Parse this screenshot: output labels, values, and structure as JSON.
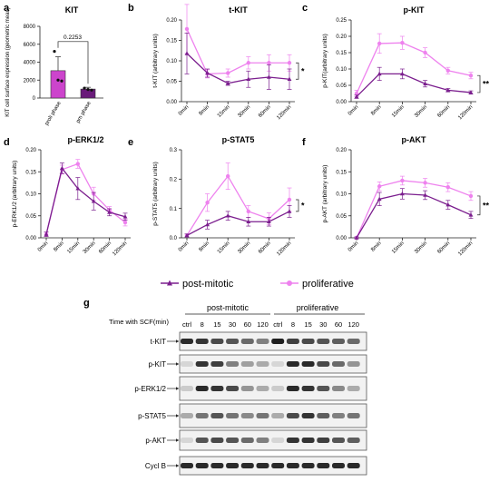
{
  "colors": {
    "post_mitotic": "#7b1e8e",
    "proliferative": "#ee82ee",
    "bar_prolif": "#cc44cc",
    "bar_pm": "#6a1b7a"
  },
  "panel_a": {
    "letter": "a",
    "chart_data": {
      "type": "bar",
      "title": "KIT",
      "categories": [
        "proli phase",
        "pm phase"
      ],
      "values": [
        3050,
        1000
      ],
      "errors": [
        1550,
        200
      ],
      "points": [
        [
          5200,
          2000,
          1900
        ],
        [
          1100,
          950,
          880
        ]
      ],
      "ylabel": "KIT cell surface expression (geometric mean)",
      "ylim": [
        0,
        8000
      ],
      "yticks": [
        "0",
        "2000",
        "4000",
        "6000",
        "8000"
      ],
      "p_value": "0.2253"
    }
  },
  "line_panels": [
    {
      "letter": "b",
      "chart_data": {
        "type": "line",
        "title": "t-KIT",
        "ylabel": "t-KIT (arbitrary units)",
        "ylim": [
          0,
          0.2
        ],
        "yticks": [
          "0.00",
          "0.05",
          "0.10",
          "0.15",
          "0.20"
        ],
        "categories": [
          "0min",
          "8min",
          "15min",
          "30min",
          "60min",
          "120min"
        ],
        "series": [
          {
            "values": [
              0.118,
              0.07,
              0.045,
              0.055,
              0.06,
              0.055
            ],
            "errors": [
              0.05,
              0.01,
              0.005,
              0.02,
              0.03,
              0.025
            ]
          },
          {
            "values": [
              0.178,
              0.068,
              0.07,
              0.095,
              0.095,
              0.095
            ],
            "errors": [
              0.06,
              0.01,
              0.01,
              0.015,
              0.02,
              0.02
            ]
          }
        ],
        "significance": "*"
      }
    },
    {
      "letter": "c",
      "chart_data": {
        "type": "line",
        "title": "p-KIT",
        "ylabel": "p-KIT(arbitrary units)",
        "ylim": [
          0,
          0.25
        ],
        "yticks": [
          "0.00",
          "0.05",
          "0.10",
          "0.15",
          "0.20",
          "0.25"
        ],
        "categories": [
          "0min",
          "8min",
          "15min",
          "30min",
          "60min",
          "120min"
        ],
        "series": [
          {
            "values": [
              0.015,
              0.085,
              0.085,
              0.055,
              0.035,
              0.028
            ],
            "errors": [
              0.005,
              0.02,
              0.015,
              0.01,
              0.005,
              0.005
            ]
          },
          {
            "values": [
              0.025,
              0.178,
              0.18,
              0.15,
              0.095,
              0.08
            ],
            "errors": [
              0.01,
              0.03,
              0.02,
              0.015,
              0.01,
              0.01
            ]
          }
        ],
        "significance": "**"
      }
    },
    {
      "letter": "d",
      "chart_data": {
        "type": "line",
        "title": "p-ERK1/2",
        "ylabel": "p-ERK1/2 (arbitrary units)",
        "ylim": [
          0,
          0.2
        ],
        "yticks": [
          "0.00",
          "0.05",
          "0.10",
          "0.15",
          "0.20"
        ],
        "categories": [
          "0min",
          "8min",
          "15min",
          "30min",
          "60min",
          "120min"
        ],
        "series": [
          {
            "values": [
              0.008,
              0.158,
              0.112,
              0.083,
              0.058,
              0.048
            ],
            "errors": [
              0.005,
              0.012,
              0.025,
              0.02,
              0.008,
              0.008
            ]
          },
          {
            "values": [
              0.008,
              0.155,
              0.168,
              0.1,
              0.063,
              0.035
            ],
            "errors": [
              0.005,
              0.01,
              0.01,
              0.015,
              0.008,
              0.008
            ]
          }
        ]
      }
    },
    {
      "letter": "e",
      "chart_data": {
        "type": "line",
        "title": "p-STAT5",
        "ylabel": "p-STAT5 (arbitrary units)",
        "ylim": [
          0,
          0.3
        ],
        "yticks": [
          "0.0",
          "0.1",
          "0.2",
          "0.3"
        ],
        "categories": [
          "0min",
          "8min",
          "15min",
          "30min",
          "60min",
          "120min"
        ],
        "series": [
          {
            "values": [
              0.008,
              0.045,
              0.075,
              0.055,
              0.055,
              0.09
            ],
            "errors": [
              0.005,
              0.015,
              0.015,
              0.015,
              0.015,
              0.02
            ]
          },
          {
            "values": [
              0.008,
              0.12,
              0.21,
              0.09,
              0.065,
              0.13
            ],
            "errors": [
              0.005,
              0.03,
              0.045,
              0.02,
              0.02,
              0.04
            ]
          }
        ],
        "significance": "*"
      }
    },
    {
      "letter": "f",
      "chart_data": {
        "type": "line",
        "title": "p-AKT",
        "ylabel": "p-AKT (arbitrary units)",
        "ylim": [
          0,
          0.2
        ],
        "yticks": [
          "0.00",
          "0.05",
          "0.10",
          "0.15",
          "0.20"
        ],
        "categories": [
          "0min",
          "8min",
          "15min",
          "30min",
          "60min",
          "120min"
        ],
        "series": [
          {
            "values": [
              0.0,
              0.088,
              0.1,
              0.097,
              0.075,
              0.052
            ],
            "errors": [
              0.002,
              0.015,
              0.012,
              0.01,
              0.01,
              0.008
            ]
          },
          {
            "values": [
              0.0,
              0.117,
              0.13,
              0.125,
              0.115,
              0.095
            ],
            "errors": [
              0.002,
              0.01,
              0.01,
              0.01,
              0.01,
              0.01
            ]
          }
        ],
        "significance": "**"
      }
    }
  ],
  "legend": {
    "post_mitotic": "post-mitotic",
    "proliferative": "proliferative"
  },
  "panel_g": {
    "letter": "g",
    "group_post_mitotic": "post-mitotic",
    "group_proliferative": "proliferative",
    "time_label": "Time with SCF(min)",
    "lanes": [
      "ctrl",
      "8",
      "15",
      "30",
      "60",
      "120",
      "ctrl",
      "8",
      "15",
      "30",
      "60",
      "120"
    ],
    "rows": [
      {
        "label": "t-KIT",
        "intensities": [
          0.9,
          0.85,
          0.75,
          0.7,
          0.6,
          0.5,
          0.95,
          0.8,
          0.75,
          0.7,
          0.65,
          0.6
        ]
      },
      {
        "label": "p-KIT",
        "intensities": [
          0.1,
          0.85,
          0.8,
          0.5,
          0.35,
          0.3,
          0.1,
          0.9,
          0.9,
          0.75,
          0.6,
          0.4
        ]
      },
      {
        "label": "p-ERK1/2",
        "intensities": [
          0.15,
          0.9,
          0.85,
          0.75,
          0.4,
          0.3,
          0.15,
          0.9,
          0.85,
          0.7,
          0.45,
          0.3
        ]
      },
      {
        "label": "p-STAT5",
        "intensities": [
          0.3,
          0.55,
          0.7,
          0.55,
          0.45,
          0.55,
          0.3,
          0.75,
          0.85,
          0.65,
          0.5,
          0.55
        ]
      },
      {
        "label": "p-AKT",
        "intensities": [
          0.1,
          0.7,
          0.75,
          0.7,
          0.6,
          0.5,
          0.1,
          0.85,
          0.85,
          0.8,
          0.7,
          0.65
        ]
      },
      {
        "label": "Cycl B",
        "intensities": [
          0.9,
          0.9,
          0.9,
          0.9,
          0.9,
          0.9,
          0.9,
          0.9,
          0.9,
          0.9,
          0.9,
          0.9
        ]
      }
    ]
  }
}
